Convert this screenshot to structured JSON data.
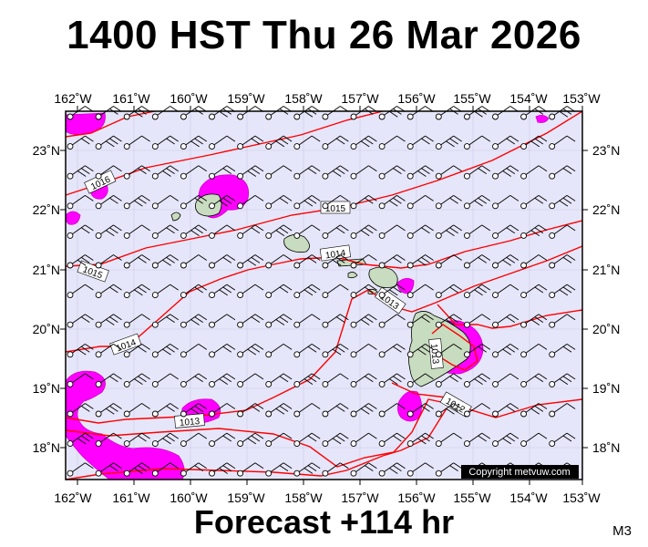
{
  "title": "1400 HST Thu 26 Mar 2026",
  "footer": "Forecast +114 hr",
  "model_label": "M3",
  "copyright": "Copyright metvuw.com",
  "colors": {
    "ocean": "#e6e6fa",
    "isobar": "#ff0000",
    "rain": "#ff00ff",
    "land": "#c8dcc0",
    "land_dark": "#8fa88a",
    "wind": "#000000"
  },
  "axes": {
    "lon_labels": [
      "162˚W",
      "161˚W",
      "160˚W",
      "159˚W",
      "158˚W",
      "157˚W",
      "156˚W",
      "155˚W",
      "154˚W",
      "153˚W"
    ],
    "lat_labels": [
      "23˚N",
      "22˚N",
      "21˚N",
      "20˚N",
      "19˚N",
      "18˚N"
    ],
    "lon_range": [
      -162,
      -153
    ],
    "lat_range": [
      17.5,
      23.6
    ]
  },
  "isobar_labels": [
    "1016",
    "1015",
    "1015",
    "1014",
    "1014",
    "1013",
    "1013",
    "1012",
    "1013"
  ]
}
